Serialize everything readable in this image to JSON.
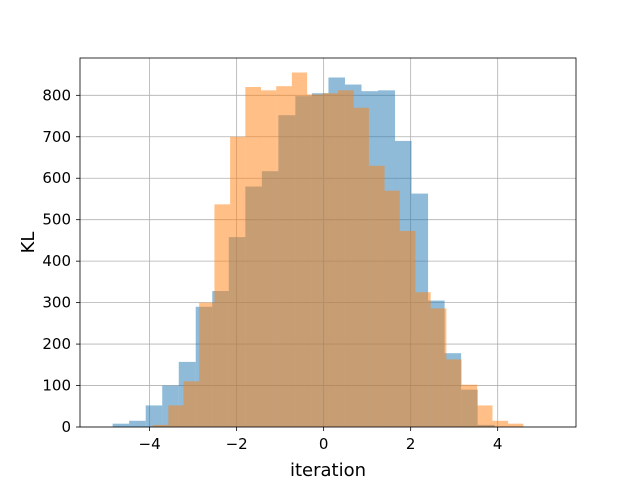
{
  "chart_data": {
    "type": "bar",
    "subtype": "overlapping-histogram",
    "title": "",
    "xlabel": "iteration",
    "ylabel": "KL",
    "xlim": [
      -5.6,
      5.8
    ],
    "ylim": [
      0,
      890
    ],
    "xticks": [
      -4,
      -2,
      0,
      2,
      4
    ],
    "xtick_labels": [
      "−4",
      "−2",
      "0",
      "2",
      "4"
    ],
    "yticks": [
      0,
      100,
      200,
      300,
      400,
      500,
      600,
      700,
      800
    ],
    "grid": true,
    "legend": "none",
    "series": [
      {
        "color": "#1f77b4",
        "opacity": 0.5,
        "bins": [
          {
            "x0": -4.85,
            "x1": -4.47,
            "value": 8
          },
          {
            "x0": -4.47,
            "x1": -4.09,
            "value": 15
          },
          {
            "x0": -4.09,
            "x1": -3.71,
            "value": 52
          },
          {
            "x0": -3.71,
            "x1": -3.33,
            "value": 100
          },
          {
            "x0": -3.33,
            "x1": -2.94,
            "value": 157
          },
          {
            "x0": -2.94,
            "x1": -2.56,
            "value": 290
          },
          {
            "x0": -2.56,
            "x1": -2.18,
            "value": 328
          },
          {
            "x0": -2.18,
            "x1": -1.8,
            "value": 458
          },
          {
            "x0": -1.8,
            "x1": -1.42,
            "value": 580
          },
          {
            "x0": -1.42,
            "x1": -1.04,
            "value": 617
          },
          {
            "x0": -1.04,
            "x1": -0.65,
            "value": 752
          },
          {
            "x0": -0.65,
            "x1": -0.27,
            "value": 798
          },
          {
            "x0": -0.27,
            "x1": 0.11,
            "value": 805
          },
          {
            "x0": 0.11,
            "x1": 0.49,
            "value": 843
          },
          {
            "x0": 0.49,
            "x1": 0.87,
            "value": 826
          },
          {
            "x0": 0.87,
            "x1": 1.25,
            "value": 810
          },
          {
            "x0": 1.25,
            "x1": 1.64,
            "value": 812
          },
          {
            "x0": 1.64,
            "x1": 2.02,
            "value": 690
          },
          {
            "x0": 2.02,
            "x1": 2.4,
            "value": 563
          },
          {
            "x0": 2.4,
            "x1": 2.78,
            "value": 305
          },
          {
            "x0": 2.78,
            "x1": 3.16,
            "value": 178
          },
          {
            "x0": 3.16,
            "x1": 3.54,
            "value": 90
          },
          {
            "x0": 3.54,
            "x1": 3.93,
            "value": 5
          }
        ]
      },
      {
        "color": "#ff7f0e",
        "opacity": 0.5,
        "bins": [
          {
            "x0": -3.93,
            "x1": -3.57,
            "value": 5
          },
          {
            "x0": -3.57,
            "x1": -3.22,
            "value": 52
          },
          {
            "x0": -3.22,
            "x1": -2.86,
            "value": 110
          },
          {
            "x0": -2.86,
            "x1": -2.51,
            "value": 300
          },
          {
            "x0": -2.51,
            "x1": -2.15,
            "value": 537
          },
          {
            "x0": -2.15,
            "x1": -1.8,
            "value": 700
          },
          {
            "x0": -1.8,
            "x1": -1.44,
            "value": 820
          },
          {
            "x0": -1.44,
            "x1": -1.09,
            "value": 812
          },
          {
            "x0": -1.09,
            "x1": -0.73,
            "value": 822
          },
          {
            "x0": -0.73,
            "x1": -0.38,
            "value": 855
          },
          {
            "x0": -0.38,
            "x1": -0.02,
            "value": 802
          },
          {
            "x0": -0.02,
            "x1": 0.33,
            "value": 805
          },
          {
            "x0": 0.33,
            "x1": 0.69,
            "value": 812
          },
          {
            "x0": 0.69,
            "x1": 1.04,
            "value": 770
          },
          {
            "x0": 1.04,
            "x1": 1.4,
            "value": 630
          },
          {
            "x0": 1.4,
            "x1": 1.75,
            "value": 570
          },
          {
            "x0": 1.75,
            "x1": 2.11,
            "value": 473
          },
          {
            "x0": 2.11,
            "x1": 2.46,
            "value": 325
          },
          {
            "x0": 2.46,
            "x1": 2.82,
            "value": 286
          },
          {
            "x0": 2.82,
            "x1": 3.17,
            "value": 163
          },
          {
            "x0": 3.17,
            "x1": 3.53,
            "value": 102
          },
          {
            "x0": 3.53,
            "x1": 3.88,
            "value": 52
          },
          {
            "x0": 3.88,
            "x1": 4.24,
            "value": 15
          },
          {
            "x0": 4.24,
            "x1": 4.59,
            "value": 8
          }
        ]
      }
    ]
  }
}
